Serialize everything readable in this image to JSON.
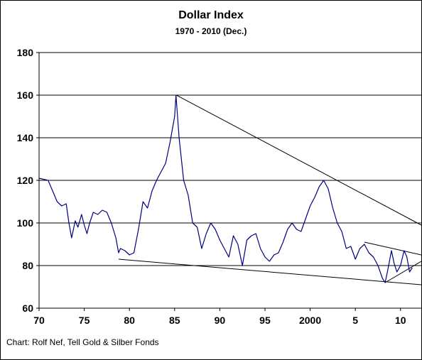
{
  "chart_data": {
    "type": "line",
    "title": "Dollar Index",
    "subtitle": "1970 - 2010 (Dec.)",
    "xlabel": "",
    "ylabel": "",
    "xlim": [
      1970,
      2012.3
    ],
    "ylim": [
      60,
      180
    ],
    "x_ticks": [
      1970,
      1975,
      1980,
      1985,
      1990,
      1995,
      2000,
      2005,
      2010
    ],
    "x_tick_labels": [
      "70",
      "75",
      "80",
      "85",
      "90",
      "95",
      "2000",
      "5",
      "10"
    ],
    "y_ticks": [
      60,
      80,
      100,
      120,
      140,
      160,
      180
    ],
    "y_tick_labels": [
      "60",
      "80",
      "100",
      "120",
      "140",
      "160",
      "180"
    ],
    "grid": "horizontal",
    "legend": "none",
    "colors": {
      "series": "#000080",
      "trendline": "#000000",
      "gridline": "#000000",
      "background": "#ffffff"
    },
    "series": [
      {
        "name": "",
        "points": [
          [
            1970.0,
            121
          ],
          [
            1971.0,
            120
          ],
          [
            1971.5,
            115
          ],
          [
            1972.0,
            110
          ],
          [
            1972.5,
            108
          ],
          [
            1973.0,
            109
          ],
          [
            1973.3,
            100
          ],
          [
            1973.6,
            93
          ],
          [
            1974.0,
            101
          ],
          [
            1974.3,
            98
          ],
          [
            1974.7,
            104
          ],
          [
            1975.0,
            99
          ],
          [
            1975.3,
            95
          ],
          [
            1975.6,
            100
          ],
          [
            1976.0,
            105
          ],
          [
            1976.5,
            104
          ],
          [
            1977.0,
            106
          ],
          [
            1977.5,
            105
          ],
          [
            1978.0,
            100
          ],
          [
            1978.5,
            93
          ],
          [
            1978.8,
            86
          ],
          [
            1979.0,
            88
          ],
          [
            1979.5,
            87
          ],
          [
            1980.0,
            85
          ],
          [
            1980.5,
            86
          ],
          [
            1981.0,
            97
          ],
          [
            1981.5,
            110
          ],
          [
            1982.0,
            107
          ],
          [
            1982.5,
            115
          ],
          [
            1983.0,
            120
          ],
          [
            1983.5,
            124
          ],
          [
            1984.0,
            128
          ],
          [
            1984.5,
            138
          ],
          [
            1985.0,
            150
          ],
          [
            1985.15,
            160
          ],
          [
            1985.5,
            140
          ],
          [
            1986.0,
            120
          ],
          [
            1986.5,
            113
          ],
          [
            1987.0,
            100
          ],
          [
            1987.5,
            98
          ],
          [
            1988.0,
            88
          ],
          [
            1988.5,
            95
          ],
          [
            1989.0,
            100
          ],
          [
            1989.5,
            97
          ],
          [
            1990.0,
            92
          ],
          [
            1990.5,
            88
          ],
          [
            1991.0,
            84
          ],
          [
            1991.5,
            94
          ],
          [
            1992.0,
            90
          ],
          [
            1992.5,
            80
          ],
          [
            1993.0,
            92
          ],
          [
            1993.5,
            94
          ],
          [
            1994.0,
            95
          ],
          [
            1994.5,
            88
          ],
          [
            1995.0,
            84
          ],
          [
            1995.5,
            82
          ],
          [
            1996.0,
            85
          ],
          [
            1996.5,
            86
          ],
          [
            1997.0,
            91
          ],
          [
            1997.5,
            97
          ],
          [
            1998.0,
            100
          ],
          [
            1998.5,
            97
          ],
          [
            1999.0,
            96
          ],
          [
            1999.5,
            102
          ],
          [
            2000.0,
            108
          ],
          [
            2000.5,
            112
          ],
          [
            2001.0,
            117
          ],
          [
            2001.5,
            120
          ],
          [
            2002.0,
            116
          ],
          [
            2002.5,
            107
          ],
          [
            2003.0,
            100
          ],
          [
            2003.5,
            96
          ],
          [
            2004.0,
            88
          ],
          [
            2004.5,
            89
          ],
          [
            2005.0,
            83
          ],
          [
            2005.5,
            88
          ],
          [
            2006.0,
            90
          ],
          [
            2006.5,
            86
          ],
          [
            2007.0,
            84
          ],
          [
            2007.5,
            80
          ],
          [
            2008.0,
            74
          ],
          [
            2008.3,
            72
          ],
          [
            2008.6,
            78
          ],
          [
            2009.0,
            87
          ],
          [
            2009.3,
            81
          ],
          [
            2009.6,
            77
          ],
          [
            2010.0,
            80
          ],
          [
            2010.4,
            87
          ],
          [
            2010.7,
            84
          ],
          [
            2011.0,
            77
          ],
          [
            2011.3,
            79
          ]
        ]
      }
    ],
    "trendlines": [
      {
        "from": [
          1985.2,
          160
        ],
        "to": [
          2012.3,
          99
        ]
      },
      {
        "from": [
          1978.8,
          83
        ],
        "to": [
          2012.3,
          71
        ]
      },
      {
        "from": [
          2006.0,
          91
        ],
        "to": [
          2012.3,
          85
        ]
      },
      {
        "from": [
          2008.3,
          72
        ],
        "to": [
          2012.3,
          82
        ]
      }
    ]
  },
  "source_note": "Chart: Rolf Nef, Tell Gold & Silber Fonds"
}
